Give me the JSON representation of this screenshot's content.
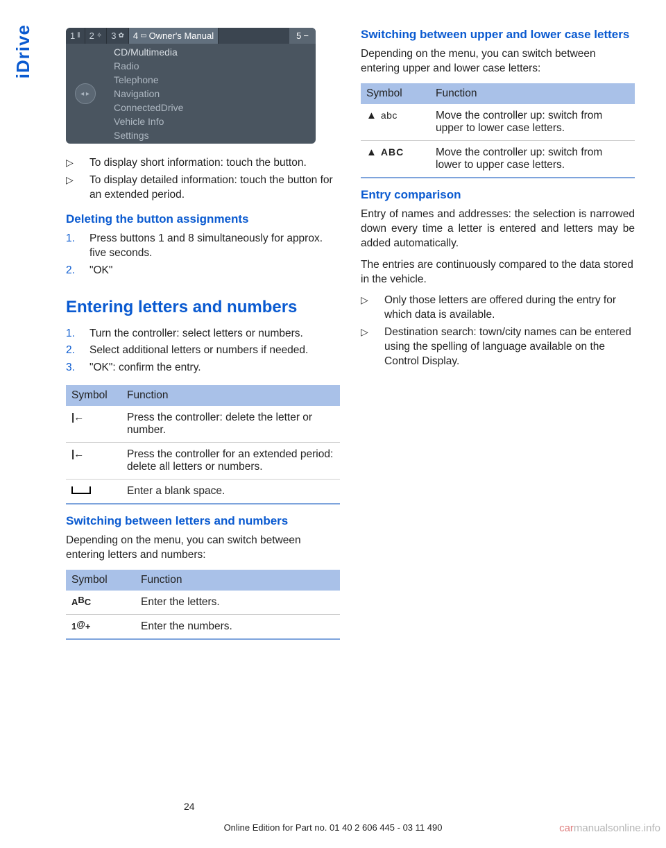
{
  "side_tab": "iDrive",
  "screenshot": {
    "tabs": [
      "1",
      "2",
      "3",
      "4",
      "Owner's Manual",
      "5"
    ],
    "menu": [
      "CD/Multimedia",
      "Radio",
      "Telephone",
      "Navigation",
      "ConnectedDrive",
      "Vehicle Info",
      "Settings"
    ]
  },
  "left": {
    "bullets_top": [
      "To display short information: touch the button.",
      "To display detailed information: touch the button for an extended period."
    ],
    "h_delete": "Deleting the button assignments",
    "ol_delete": [
      "Press buttons 1 and 8 simultaneously for approx. five seconds.",
      "\"OK\""
    ],
    "h_section": "Entering letters and numbers",
    "ol_enter": [
      "Turn the controller: select letters or numbers.",
      "Select additional letters or numbers if needed.",
      "\"OK\": confirm the entry."
    ],
    "table1": {
      "head": [
        "Symbol",
        "Function"
      ],
      "rows": [
        {
          "fn": "Press the controller: delete the letter or number."
        },
        {
          "fn": "Press the controller for an extended period: delete all letters or numbers."
        },
        {
          "fn": "Enter a blank space."
        }
      ]
    },
    "h_switch_ln": "Switching between letters and numbers",
    "p_switch_ln": "Depending on the menu, you can switch between entering letters and numbers:",
    "table2": {
      "head": [
        "Symbol",
        "Function"
      ],
      "rows": [
        {
          "fn": "Enter the letters."
        },
        {
          "fn": "Enter the numbers."
        }
      ]
    }
  },
  "right": {
    "h_switch_case": "Switching between upper and lower case letters",
    "p_switch_case": "Depending on the menu, you can switch between entering upper and lower case letters:",
    "table3": {
      "head": [
        "Symbol",
        "Function"
      ],
      "rows": [
        {
          "sym_text": "abc",
          "fn": "Move the controller up: switch from upper to lower case letters."
        },
        {
          "sym_text": "ABC",
          "fn": "Move the controller up: switch from lower to upper case letters."
        }
      ]
    },
    "h_entry": "Entry comparison",
    "p_entry1": "Entry of names and addresses: the selection is narrowed down every time a letter is entered and letters may be added automatically.",
    "p_entry2": "The entries are continuously compared to the data stored in the vehicle.",
    "bullets_entry": [
      "Only those letters are offered during the entry for which data is available.",
      "Destination search: town/city names can be entered using the spelling of language available on the Control Display."
    ]
  },
  "page_number": "24",
  "footer": "Online Edition for Part no. 01 40 2 606 445 - 03 11 490",
  "watermark": "carmanualsonline.info"
}
